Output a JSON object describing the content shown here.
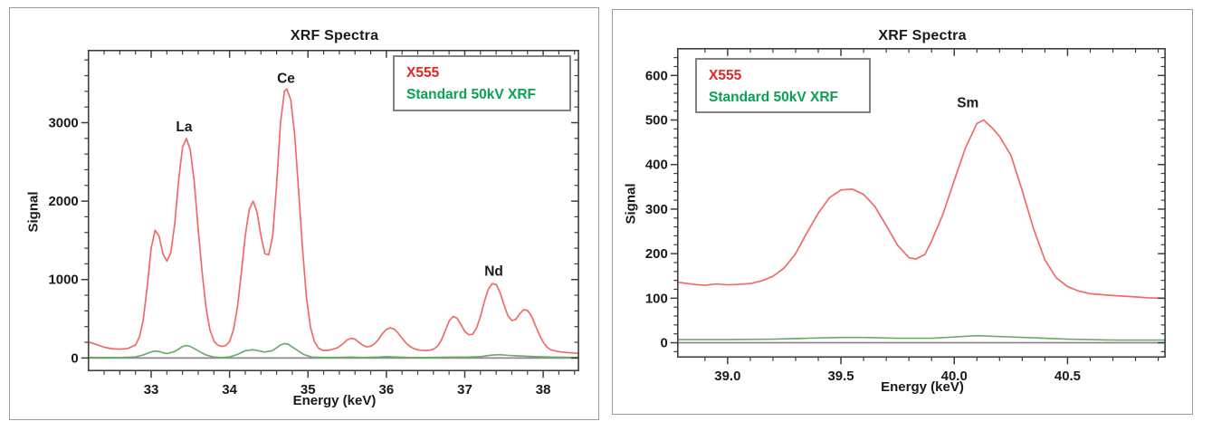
{
  "page": {
    "background": "#ffffff",
    "panel_border": "#9a9a9a"
  },
  "chart_data": [
    {
      "type": "line",
      "title": "XRF Spectra",
      "xlabel": "Energy (keV)",
      "ylabel": "Signal",
      "xlim": [
        32.2,
        38.45
      ],
      "ylim": [
        -160,
        3920
      ],
      "grid": false,
      "legend_position": "upper right inside",
      "legend": [
        {
          "label": "X555",
          "color": "#e52520"
        },
        {
          "label": "Standard 50kV XRF",
          "color": "#0aa152"
        }
      ],
      "xticks": {
        "major": [
          33,
          34,
          35,
          36,
          37,
          38
        ],
        "minor_step": 0.2,
        "decimals": 0
      },
      "yticks": {
        "major": [
          0,
          1000,
          2000,
          3000
        ],
        "minor_step": 200,
        "decimals": 0
      },
      "zero_line_color": "#8a8a8a",
      "frame_color": "#3d3d3d",
      "annotations": [
        {
          "text": "La",
          "x": 33.42,
          "y": 2890
        },
        {
          "text": "Ce",
          "x": 34.72,
          "y": 3510
        },
        {
          "text": "Nd",
          "x": 37.37,
          "y": 1050
        }
      ],
      "series": [
        {
          "name": "X555",
          "color": "#f16a6a",
          "points": [
            [
              32.2,
              205
            ],
            [
              32.3,
              172
            ],
            [
              32.4,
              138
            ],
            [
              32.5,
              118
            ],
            [
              32.6,
              112
            ],
            [
              32.7,
              120
            ],
            [
              32.8,
              165
            ],
            [
              32.85,
              270
            ],
            [
              32.9,
              490
            ],
            [
              32.95,
              920
            ],
            [
              33.0,
              1400
            ],
            [
              33.05,
              1630
            ],
            [
              33.1,
              1555
            ],
            [
              33.15,
              1330
            ],
            [
              33.2,
              1235
            ],
            [
              33.25,
              1340
            ],
            [
              33.3,
              1710
            ],
            [
              33.35,
              2260
            ],
            [
              33.4,
              2690
            ],
            [
              33.45,
              2800
            ],
            [
              33.5,
              2650
            ],
            [
              33.55,
              2240
            ],
            [
              33.6,
              1640
            ],
            [
              33.65,
              1090
            ],
            [
              33.7,
              640
            ],
            [
              33.75,
              355
            ],
            [
              33.8,
              215
            ],
            [
              33.85,
              163
            ],
            [
              33.9,
              148
            ],
            [
              33.95,
              158
            ],
            [
              34.0,
              210
            ],
            [
              34.05,
              360
            ],
            [
              34.1,
              650
            ],
            [
              34.15,
              1080
            ],
            [
              34.2,
              1560
            ],
            [
              34.25,
              1890
            ],
            [
              34.3,
              2000
            ],
            [
              34.35,
              1860
            ],
            [
              34.4,
              1560
            ],
            [
              34.45,
              1330
            ],
            [
              34.5,
              1315
            ],
            [
              34.55,
              1560
            ],
            [
              34.6,
              2210
            ],
            [
              34.65,
              3010
            ],
            [
              34.7,
              3400
            ],
            [
              34.73,
              3430
            ],
            [
              34.78,
              3290
            ],
            [
              34.83,
              2850
            ],
            [
              34.88,
              2150
            ],
            [
              34.93,
              1400
            ],
            [
              34.98,
              780
            ],
            [
              35.03,
              400
            ],
            [
              35.08,
              215
            ],
            [
              35.13,
              130
            ],
            [
              35.18,
              100
            ],
            [
              35.23,
              95
            ],
            [
              35.3,
              105
            ],
            [
              35.38,
              132
            ],
            [
              35.45,
              185
            ],
            [
              35.5,
              230
            ],
            [
              35.55,
              252
            ],
            [
              35.6,
              240
            ],
            [
              35.65,
              200
            ],
            [
              35.7,
              162
            ],
            [
              35.75,
              142
            ],
            [
              35.8,
              150
            ],
            [
              35.85,
              182
            ],
            [
              35.9,
              238
            ],
            [
              35.95,
              310
            ],
            [
              36.0,
              365
            ],
            [
              36.05,
              385
            ],
            [
              36.1,
              368
            ],
            [
              36.15,
              318
            ],
            [
              36.2,
              252
            ],
            [
              36.25,
              192
            ],
            [
              36.3,
              148
            ],
            [
              36.35,
              120
            ],
            [
              36.4,
              104
            ],
            [
              36.45,
              97
            ],
            [
              36.5,
              95
            ],
            [
              36.55,
              99
            ],
            [
              36.6,
              112
            ],
            [
              36.65,
              148
            ],
            [
              36.7,
              225
            ],
            [
              36.75,
              345
            ],
            [
              36.8,
              470
            ],
            [
              36.85,
              530
            ],
            [
              36.9,
              508
            ],
            [
              36.95,
              428
            ],
            [
              37.0,
              340
            ],
            [
              37.05,
              296
            ],
            [
              37.1,
              302
            ],
            [
              37.15,
              382
            ],
            [
              37.2,
              530
            ],
            [
              37.25,
              718
            ],
            [
              37.3,
              878
            ],
            [
              37.35,
              948
            ],
            [
              37.4,
              938
            ],
            [
              37.45,
              835
            ],
            [
              37.5,
              678
            ],
            [
              37.55,
              540
            ],
            [
              37.6,
              478
            ],
            [
              37.65,
              492
            ],
            [
              37.7,
              562
            ],
            [
              37.75,
              615
            ],
            [
              37.8,
              608
            ],
            [
              37.85,
              535
            ],
            [
              37.9,
              418
            ],
            [
              37.95,
              298
            ],
            [
              38.0,
              202
            ],
            [
              38.05,
              138
            ],
            [
              38.1,
              103
            ],
            [
              38.2,
              80
            ],
            [
              38.3,
              70
            ],
            [
              38.4,
              63
            ],
            [
              38.45,
              60
            ]
          ]
        },
        {
          "name": "Standard 50kV XRF",
          "color": "#6bac69",
          "points": [
            [
              32.2,
              8
            ],
            [
              32.4,
              5
            ],
            [
              32.6,
              7
            ],
            [
              32.8,
              14
            ],
            [
              32.9,
              40
            ],
            [
              33.0,
              78
            ],
            [
              33.05,
              88
            ],
            [
              33.1,
              82
            ],
            [
              33.15,
              68
            ],
            [
              33.2,
              56
            ],
            [
              33.3,
              84
            ],
            [
              33.4,
              146
            ],
            [
              33.45,
              158
            ],
            [
              33.5,
              148
            ],
            [
              33.6,
              92
            ],
            [
              33.7,
              38
            ],
            [
              33.8,
              12
            ],
            [
              33.9,
              7
            ],
            [
              34.0,
              14
            ],
            [
              34.1,
              46
            ],
            [
              34.2,
              92
            ],
            [
              34.3,
              106
            ],
            [
              34.35,
              96
            ],
            [
              34.45,
              76
            ],
            [
              34.55,
              96
            ],
            [
              34.65,
              166
            ],
            [
              34.7,
              184
            ],
            [
              34.75,
              174
            ],
            [
              34.85,
              108
            ],
            [
              34.95,
              42
            ],
            [
              35.05,
              12
            ],
            [
              35.2,
              5
            ],
            [
              35.4,
              8
            ],
            [
              35.55,
              11
            ],
            [
              35.7,
              7
            ],
            [
              35.9,
              12
            ],
            [
              36.0,
              18
            ],
            [
              36.1,
              14
            ],
            [
              36.3,
              7
            ],
            [
              36.5,
              6
            ],
            [
              36.7,
              9
            ],
            [
              36.9,
              12
            ],
            [
              37.0,
              10
            ],
            [
              37.2,
              18
            ],
            [
              37.35,
              38
            ],
            [
              37.45,
              42
            ],
            [
              37.55,
              34
            ],
            [
              37.7,
              26
            ],
            [
              37.9,
              18
            ],
            [
              38.1,
              12
            ],
            [
              38.3,
              9
            ],
            [
              38.45,
              8
            ]
          ]
        }
      ]
    },
    {
      "type": "line",
      "title": "XRF Spectra",
      "xlabel": "Energy (keV)",
      "ylabel": "Signal",
      "xlim": [
        38.78,
        40.93
      ],
      "ylim": [
        -32,
        660
      ],
      "grid": false,
      "legend_position": "upper left inside",
      "legend": [
        {
          "label": "X555",
          "color": "#e52520"
        },
        {
          "label": "Standard 50kV XRF",
          "color": "#0aa152"
        }
      ],
      "xticks": {
        "major": [
          39.0,
          39.5,
          40.0,
          40.5
        ],
        "minor_step": 0.1,
        "decimals": 1
      },
      "yticks": {
        "major": [
          0,
          100,
          200,
          300,
          400,
          500,
          600
        ],
        "minor_step": 20,
        "decimals": 0
      },
      "zero_line_color": "#8a8a8a",
      "frame_color": "#3d3d3d",
      "annotations": [
        {
          "text": "Sm",
          "x": 40.06,
          "y": 528
        }
      ],
      "series": [
        {
          "name": "X555",
          "color": "#f16a6a",
          "points": [
            [
              38.78,
              136
            ],
            [
              38.85,
              131
            ],
            [
              38.9,
              129
            ],
            [
              38.95,
              132
            ],
            [
              39.0,
              130
            ],
            [
              39.05,
              131
            ],
            [
              39.1,
              133
            ],
            [
              39.15,
              139
            ],
            [
              39.2,
              149
            ],
            [
              39.25,
              168
            ],
            [
              39.3,
              200
            ],
            [
              39.35,
              247
            ],
            [
              39.4,
              291
            ],
            [
              39.45,
              326
            ],
            [
              39.5,
              343
            ],
            [
              39.55,
              345
            ],
            [
              39.6,
              333
            ],
            [
              39.65,
              306
            ],
            [
              39.7,
              263
            ],
            [
              39.75,
              219
            ],
            [
              39.8,
              191
            ],
            [
              39.83,
              188
            ],
            [
              39.87,
              198
            ],
            [
              39.9,
              228
            ],
            [
              39.95,
              289
            ],
            [
              40.0,
              364
            ],
            [
              40.05,
              438
            ],
            [
              40.1,
              492
            ],
            [
              40.13,
              500
            ],
            [
              40.17,
              481
            ],
            [
              40.2,
              463
            ],
            [
              40.25,
              421
            ],
            [
              40.3,
              341
            ],
            [
              40.35,
              256
            ],
            [
              40.4,
              186
            ],
            [
              40.45,
              146
            ],
            [
              40.5,
              126
            ],
            [
              40.55,
              116
            ],
            [
              40.6,
              110
            ],
            [
              40.7,
              106
            ],
            [
              40.8,
              103
            ],
            [
              40.85,
              101
            ],
            [
              40.93,
              100
            ]
          ]
        },
        {
          "name": "Standard 50kV XRF",
          "color": "#6bac69",
          "points": [
            [
              38.78,
              7
            ],
            [
              39.0,
              7
            ],
            [
              39.2,
              8
            ],
            [
              39.35,
              10
            ],
            [
              39.5,
              12
            ],
            [
              39.6,
              12
            ],
            [
              39.75,
              10
            ],
            [
              39.9,
              10
            ],
            [
              40.0,
              13
            ],
            [
              40.1,
              16
            ],
            [
              40.2,
              14
            ],
            [
              40.35,
              11
            ],
            [
              40.5,
              8
            ],
            [
              40.7,
              6
            ],
            [
              40.93,
              6
            ]
          ]
        }
      ]
    }
  ]
}
